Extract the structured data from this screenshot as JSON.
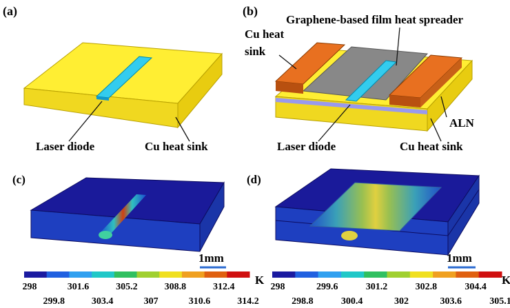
{
  "panels": [
    {
      "label": "(a)",
      "texts": [
        "Laser diode",
        "Cu heat sink"
      ]
    },
    {
      "label": "(b)",
      "texts": [
        "Graphene-based film heat spreader",
        "Cu heat",
        "sink",
        "ALN",
        "Laser diode",
        "Cu heat sink"
      ]
    },
    {
      "label": "(c)",
      "scale_bar": "1mm"
    },
    {
      "label": "(d)",
      "scale_bar": "1mm"
    }
  ],
  "colorbars": [
    {
      "unit": "K",
      "ticks_top": [
        298,
        301.6,
        305.2,
        308.8,
        312.4
      ],
      "ticks_bottom": [
        299.8,
        303.4,
        307,
        310.6,
        314.2
      ]
    },
    {
      "unit": "K",
      "ticks_top": [
        298,
        299.6,
        301.2,
        302.8,
        304.4
      ],
      "ticks_bottom": [
        298.8,
        300.4,
        302,
        303.6,
        305.1
      ]
    }
  ]
}
